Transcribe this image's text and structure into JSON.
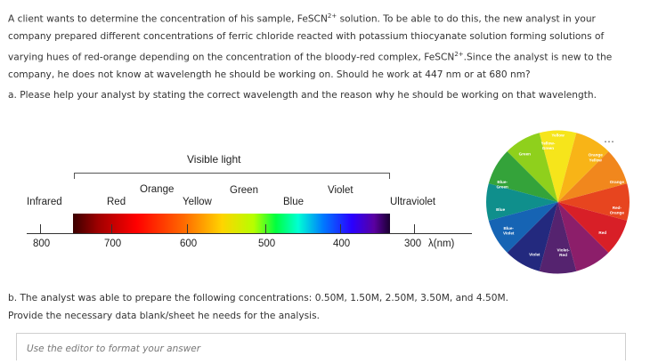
{
  "question": {
    "intro_text": "A client wants to determine the concentration of his sample, FeSCN",
    "intro_sup": "2+",
    "intro_text_2": " solution. To be able to do this, the new analyst in your company prepared different concentrations of ferric chloride reacted with potassium thiocyanate solution forming solutions of varying hues of red-orange depending on the concentration of the bloody-red complex, FeSCN",
    "intro_sup_2": "2+",
    "intro_text_3": ".Since the analyst is new to the company, he does not know at wavelength he should be working on. Should he work at 447 nm or at 680 nm?",
    "part_a": "a. Please help your analyst by stating the correct wavelength and the reason why he should be working on that wavelength.",
    "part_b_line1": "b. The analyst was able to prepare the following concentrations: 0.50M, 1.50M, 2.50M, 3.50M, and 4.50M.",
    "part_b_line2": "Provide the necessary data blank/sheet he needs for the analysis."
  },
  "spectrum": {
    "visible_light": "Visible light",
    "infrared": "Infrared",
    "red": "Red",
    "orange": "Orange",
    "yellow": "Yellow",
    "green": "Green",
    "blue": "Blue",
    "violet": "Violet",
    "ultraviolet": "Ultraviolet",
    "tick_800": "800",
    "tick_700": "700",
    "tick_600": "600",
    "tick_500": "500",
    "tick_400": "400",
    "tick_300": "300",
    "unit": "λ(nm)"
  },
  "color_wheel": {
    "yellow": "Yellow",
    "yellow_green_1": "Yellow-",
    "yellow_green_2": "Green",
    "green": "Green",
    "blue_green_1": "Blue-",
    "blue_green_2": "Green",
    "blue": "Blue",
    "blue_violet_1": "Blue-",
    "blue_violet_2": "Violet",
    "violet": "Violet",
    "violet_red_1": "Violet-",
    "violet_red_2": "Red",
    "red": "Red",
    "red_orange_1": "Red-",
    "red_orange_2": "Orange",
    "orange": "Orange",
    "orange_yellow_1": "Orange",
    "orange_yellow_2": "Yellow",
    "segment_colors": [
      "#f6e51b",
      "#8fd01c",
      "#34a33a",
      "#0f8f8c",
      "#1664b4",
      "#23297e",
      "#55236f",
      "#8c1e6a",
      "#d81f27",
      "#e7451f",
      "#f1871d",
      "#f8b417"
    ]
  },
  "toolbar": {
    "more_icon": "⋯"
  },
  "editor": {
    "placeholder": "Use the editor to format your answer"
  }
}
